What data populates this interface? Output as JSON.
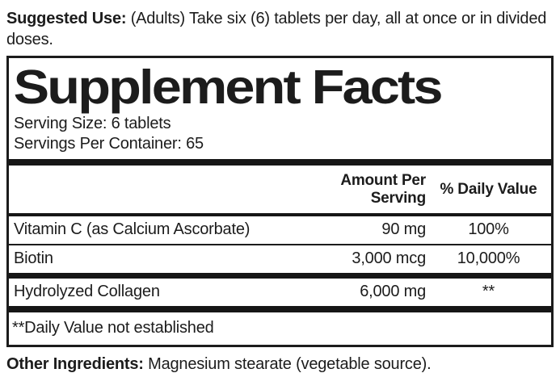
{
  "suggested_use": {
    "label": "Suggested Use:",
    "text": " (Adults) Take six (6) tablets per day, all at once or in divided doses."
  },
  "panel": {
    "title": "Supplement Facts",
    "serving_size": "Serving Size: 6 tablets",
    "servings_per_container": "Servings Per Container: 65",
    "header": {
      "amount": "Amount Per Serving",
      "daily_value": "% Daily Value"
    },
    "rows": [
      {
        "name": "Vitamin C (as Calcium Ascorbate)",
        "amount": "90 mg",
        "dv": "100%"
      },
      {
        "name": "Biotin",
        "amount": "3,000 mcg",
        "dv": "10,000%"
      },
      {
        "name": "Hydrolyzed Collagen",
        "amount": "6,000 mg",
        "dv": "**"
      }
    ],
    "footnote": "**Daily Value not established"
  },
  "other_ingredients": {
    "label": "Other Ingredients:",
    "text": " Magnesium stearate (vegetable source)."
  },
  "colors": {
    "text": "#1c1c1c",
    "separator_bar": "#161616",
    "background": "#ffffff"
  }
}
